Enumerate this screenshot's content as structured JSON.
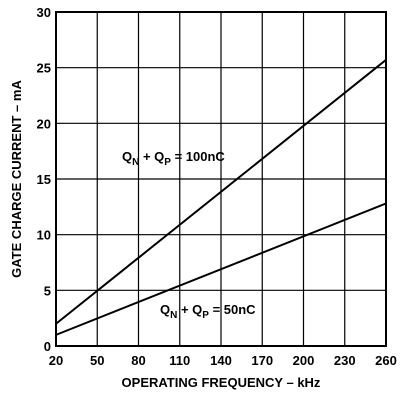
{
  "chart_data": {
    "type": "line",
    "title": "",
    "xlabel": "OPERATING FREQUENCY – kHz",
    "ylabel": "GATE CHARGE CURRENT – mA",
    "xlim": [
      20,
      260
    ],
    "ylim": [
      0,
      30
    ],
    "x_ticks": [
      20,
      50,
      80,
      110,
      140,
      170,
      200,
      230,
      260
    ],
    "y_ticks": [
      0,
      5,
      10,
      15,
      20,
      25,
      30
    ],
    "grid": true,
    "series": [
      {
        "label_parts": [
          "Q",
          "N",
          " + Q",
          "P",
          " = 100nC"
        ],
        "x": [
          20,
          260
        ],
        "y": [
          2.0,
          25.7
        ]
      },
      {
        "label_parts": [
          "Q",
          "N",
          " + Q",
          "P",
          " = 50nC"
        ],
        "x": [
          20,
          260
        ],
        "y": [
          1.0,
          12.8
        ]
      }
    ]
  }
}
